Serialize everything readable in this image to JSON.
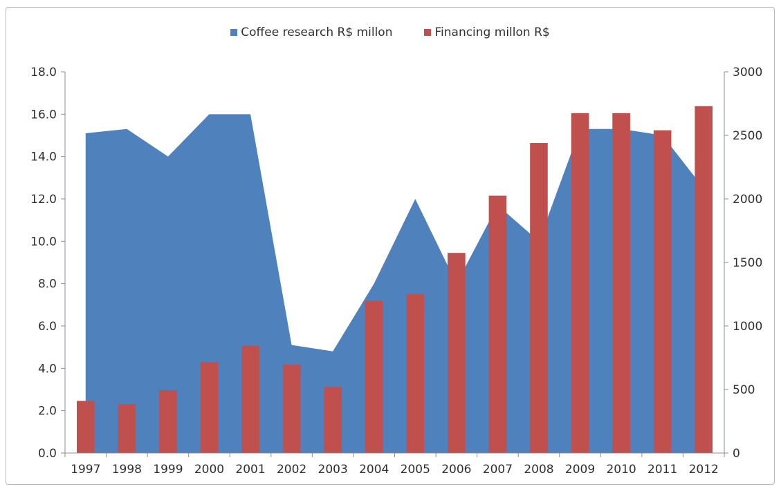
{
  "chart_data": {
    "type": "area-bar-combo",
    "categories": [
      "1997",
      "1998",
      "1999",
      "2000",
      "2001",
      "2002",
      "2003",
      "2004",
      "2005",
      "2006",
      "2007",
      "2008",
      "2009",
      "2010",
      "2011",
      "2012"
    ],
    "series": [
      {
        "name": "Coffee research R$ millon",
        "type": "area",
        "axis": "left",
        "color": "#4F81BD",
        "values": [
          15.1,
          15.3,
          14.0,
          16.0,
          16.0,
          5.1,
          4.8,
          8.0,
          12.0,
          8.0,
          11.7,
          10.0,
          15.3,
          15.3,
          15.0,
          12.5
        ]
      },
      {
        "name": "Financing millon R$",
        "type": "bar",
        "axis": "right",
        "color": "#C0504D",
        "values": [
          410,
          385,
          495,
          715,
          845,
          695,
          520,
          1200,
          1250,
          1575,
          2025,
          2440,
          2675,
          2675,
          2540,
          2730
        ]
      }
    ],
    "left_axis": {
      "ylim": [
        0,
        18
      ],
      "ticks": [
        "0.0",
        "2.0",
        "4.0",
        "6.0",
        "8.0",
        "10.0",
        "12.0",
        "14.0",
        "16.0",
        "18.0"
      ]
    },
    "right_axis": {
      "ylim": [
        0,
        3000
      ],
      "ticks": [
        "0",
        "500",
        "1000",
        "1500",
        "2000",
        "2500",
        "3000"
      ]
    },
    "grid": false,
    "legend_position": "top"
  }
}
